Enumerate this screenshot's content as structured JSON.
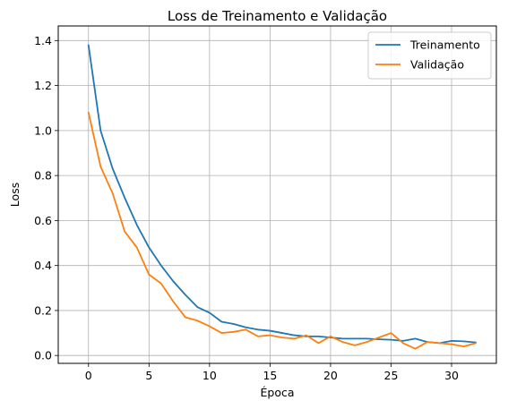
{
  "chart_data": {
    "type": "line",
    "title": "Loss de Treinamento e Validação",
    "xlabel": "Época",
    "ylabel": "Loss",
    "xlim": [
      -2.5,
      33.7
    ],
    "ylim": [
      -0.035,
      1.465
    ],
    "xticks": [
      0,
      5,
      10,
      15,
      20,
      25,
      30
    ],
    "yticks": [
      0.0,
      0.2,
      0.4,
      0.6,
      0.8,
      1.0,
      1.2,
      1.4
    ],
    "grid": true,
    "legend_position": "top-right",
    "x": [
      0,
      1,
      2,
      3,
      4,
      5,
      6,
      7,
      8,
      9,
      10,
      11,
      12,
      13,
      14,
      15,
      16,
      17,
      18,
      19,
      20,
      21,
      22,
      23,
      24,
      25,
      26,
      27,
      28,
      29,
      30,
      31,
      32
    ],
    "series": [
      {
        "name": "Treinamento",
        "color": "#1f77b4",
        "values": [
          1.38,
          1.0,
          0.83,
          0.7,
          0.58,
          0.48,
          0.4,
          0.33,
          0.27,
          0.215,
          0.19,
          0.15,
          0.14,
          0.125,
          0.115,
          0.11,
          0.1,
          0.09,
          0.085,
          0.085,
          0.08,
          0.075,
          0.075,
          0.075,
          0.072,
          0.07,
          0.065,
          0.075,
          0.06,
          0.055,
          0.065,
          0.063,
          0.058
        ]
      },
      {
        "name": "Validação",
        "color": "#ff7f0e",
        "values": [
          1.08,
          0.84,
          0.72,
          0.55,
          0.48,
          0.36,
          0.32,
          0.24,
          0.17,
          0.155,
          0.13,
          0.1,
          0.105,
          0.115,
          0.085,
          0.09,
          0.08,
          0.075,
          0.09,
          0.055,
          0.085,
          0.06,
          0.045,
          0.06,
          0.08,
          0.1,
          0.055,
          0.03,
          0.06,
          0.055,
          0.05,
          0.04,
          0.055
        ]
      }
    ]
  }
}
